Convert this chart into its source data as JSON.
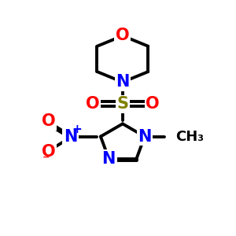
{
  "background_color": "#ffffff",
  "atom_colors": {
    "C": "#000000",
    "N": "#0000ff",
    "O": "#ff0000",
    "S": "#808000"
  },
  "bond_color": "#000000",
  "bond_width": 2.8
}
